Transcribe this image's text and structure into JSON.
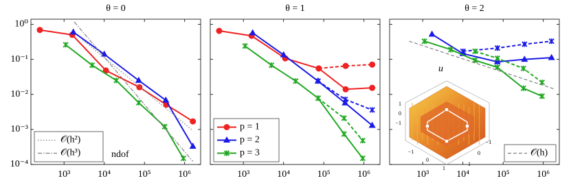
{
  "chart_data": [
    {
      "type": "line",
      "title": "θ = 0",
      "xscale": "log",
      "yscale": "log",
      "xlim": [
        150,
        2500000
      ],
      "ylim": [
        0.0001,
        1.4
      ],
      "xticks": [
        {
          "value": 1000,
          "label": "10³"
        },
        {
          "value": 10000,
          "label": "10⁴"
        },
        {
          "value": 100000,
          "label": "10⁵"
        },
        {
          "value": 1000000,
          "label": "10⁶"
        }
      ],
      "yticks": [
        {
          "value": 0.0001,
          "label": "10⁻⁴"
        },
        {
          "value": 0.001,
          "label": "10⁻³"
        },
        {
          "value": 0.01,
          "label": "10⁻²"
        },
        {
          "value": 0.1,
          "label": "10⁻¹"
        },
        {
          "value": 1,
          "label": "10⁰"
        }
      ],
      "legend": "lower left",
      "annotation": "ndof",
      "series": [
        {
          "color": "#ee2222",
          "marker": "circle",
          "dash": "solid",
          "x": [
            250,
            1600,
            11000,
            75000,
            350000,
            1600000
          ],
          "values": [
            0.69,
            0.5,
            0.048,
            0.016,
            0.0051,
            0.0017
          ]
        },
        {
          "color": "#1a1ae6",
          "marker": "triangle",
          "dash": "solid",
          "x": [
            1700,
            10000,
            72000,
            340000,
            1600000
          ],
          "values": [
            0.6,
            0.14,
            0.025,
            0.0068,
            0.00033
          ]
        },
        {
          "color": "#22a822",
          "marker": "cross",
          "dash": "solid",
          "x": [
            1100,
            5000,
            20000,
            72000,
            320000,
            930000
          ],
          "values": [
            0.26,
            0.068,
            0.025,
            0.0058,
            0.0012,
            0.00015
          ]
        },
        {
          "name": "𝒪(h²)",
          "color": "#808080",
          "marker": "none",
          "dash": "dotted",
          "x": [
            2900,
            1600000
          ],
          "values": [
            0.36,
            0.00093
          ]
        },
        {
          "name": "𝒪(h³)",
          "color": "#808080",
          "marker": "none",
          "dash": "dashdot",
          "x": [
            1800,
            1600000
          ],
          "values": [
            1.17,
            0.000123
          ]
        }
      ]
    },
    {
      "type": "line",
      "title": "θ = 1",
      "xscale": "log",
      "yscale": "log",
      "xlim": [
        150,
        2500000
      ],
      "ylim": [
        0.0001,
        1.4
      ],
      "xticks": [
        {
          "value": 1000,
          "label": "10³"
        },
        {
          "value": 10000,
          "label": "10⁴"
        },
        {
          "value": 100000,
          "label": "10⁵"
        },
        {
          "value": 1000000,
          "label": "10⁶"
        }
      ],
      "yticks": [
        0.0001,
        0.001,
        0.01,
        0.1,
        1
      ],
      "legend": "lower left",
      "series": [
        {
          "name": "p = 1",
          "color": "#ee2222",
          "marker": "circle",
          "dash": "solid",
          "x": [
            250,
            1600,
            11000,
            75000,
            350000,
            1600000
          ],
          "values": [
            0.65,
            0.47,
            0.107,
            0.055,
            0.014,
            0.0154
          ]
        },
        {
          "color": "#ee2222",
          "marker": "circle",
          "dash": "dashed",
          "x": [
            250,
            1600,
            11000,
            75000,
            350000,
            1600000
          ],
          "values": [
            null,
            null,
            null,
            0.055,
            0.065,
            0.071
          ]
        },
        {
          "name": "p = 2",
          "color": "#1a1ae6",
          "marker": "triangle",
          "dash": "solid",
          "x": [
            1700,
            10000,
            72000,
            340000,
            1600000
          ],
          "values": [
            0.57,
            0.134,
            0.024,
            0.0057,
            0.0013
          ]
        },
        {
          "color": "#1a1ae6",
          "marker": "cross",
          "dash": "dashed",
          "x": [
            1700,
            10000,
            72000,
            340000,
            1600000
          ],
          "values": [
            null,
            null,
            0.024,
            0.0072,
            0.0036
          ]
        },
        {
          "name": "p = 3",
          "color": "#22a822",
          "marker": "cross",
          "dash": "solid",
          "x": [
            1100,
            5000,
            20000,
            72000,
            320000,
            930000
          ],
          "values": [
            0.24,
            0.068,
            0.024,
            0.0078,
            0.00074,
            0.00015
          ]
        },
        {
          "color": "#22a822",
          "marker": "cross",
          "dash": "dashed",
          "x": [
            1100,
            5000,
            20000,
            72000,
            320000,
            930000
          ],
          "values": [
            null,
            null,
            null,
            0.0078,
            0.0021,
            0.00048
          ]
        }
      ]
    },
    {
      "type": "line",
      "title": "θ = 2",
      "xscale": "log",
      "yscale": "log",
      "xlim": [
        150,
        2500000
      ],
      "ylim": [
        0.0001,
        1.4
      ],
      "xticks": [
        {
          "value": 1000,
          "label": "10³"
        },
        {
          "value": 10000,
          "label": "10⁴"
        },
        {
          "value": 100000,
          "label": "10⁵"
        },
        {
          "value": 1000000,
          "label": "10⁶"
        }
      ],
      "yticks": [
        0.0001,
        0.001,
        0.01,
        0.1,
        1
      ],
      "legend": "lower right",
      "series": [
        {
          "color": "#1a1ae6",
          "marker": "triangle",
          "dash": "solid",
          "x": [
            1700,
            10000,
            72000,
            340000,
            1600000
          ],
          "values": [
            0.52,
            0.146,
            0.085,
            0.1,
            0.112
          ]
        },
        {
          "color": "#1a1ae6",
          "marker": "cross",
          "dash": "dashed",
          "x": [
            1700,
            10000,
            72000,
            340000,
            1600000
          ],
          "values": [
            null,
            0.17,
            0.21,
            0.27,
            0.33
          ]
        },
        {
          "color": "#22a822",
          "marker": "cross",
          "dash": "solid",
          "x": [
            1100,
            5000,
            20000,
            72000,
            320000,
            930000
          ],
          "values": [
            0.33,
            0.19,
            0.094,
            0.059,
            0.015,
            0.0089
          ]
        },
        {
          "color": "#22a822",
          "marker": "cross",
          "dash": "dashed",
          "x": [
            1100,
            5000,
            20000,
            72000,
            320000,
            930000
          ],
          "values": [
            null,
            null,
            0.17,
            0.107,
            0.055,
            0.022
          ]
        },
        {
          "name": "𝒪(h)",
          "color": "#808080",
          "marker": "none",
          "dash": "dashed",
          "x": [
            460,
            1800000
          ],
          "values": [
            0.33,
            0.0145
          ]
        }
      ],
      "inset": {
        "label": "u",
        "zticks": [
          "1",
          "0",
          "−1"
        ],
        "xticks": [
          "−1",
          "0",
          "1"
        ],
        "yticks": [
          "1",
          "0",
          "−1"
        ]
      }
    }
  ]
}
